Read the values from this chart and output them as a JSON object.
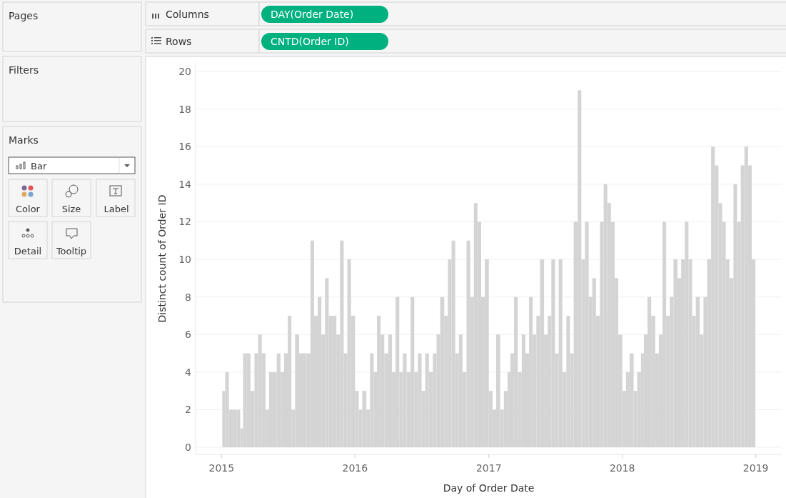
{
  "chart_data": {
    "type": "bar",
    "xlabel": "Day of Order Date",
    "ylabel": "Distinct count of Order ID",
    "x": [
      "2015-01-03",
      "2015-01-11",
      "2015-01-21",
      "2015-02-01",
      "2015-02-11",
      "2015-02-21",
      "2015-03-01",
      "2015-03-11",
      "2015-03-21",
      "2015-04-01",
      "2015-04-11",
      "2015-04-21",
      "2015-05-01",
      "2015-05-11",
      "2015-05-21",
      "2015-06-01",
      "2015-06-11",
      "2015-06-21",
      "2015-07-01",
      "2015-07-11",
      "2015-07-21",
      "2015-08-01",
      "2015-08-11",
      "2015-08-21",
      "2015-09-01",
      "2015-09-11",
      "2015-09-21",
      "2015-10-01",
      "2015-10-11",
      "2015-10-21",
      "2015-11-01",
      "2015-11-11",
      "2015-11-21",
      "2015-12-01",
      "2015-12-11",
      "2015-12-21",
      "2016-01-01",
      "2016-01-11",
      "2016-01-21",
      "2016-02-01",
      "2016-02-11",
      "2016-02-21",
      "2016-03-01",
      "2016-03-11",
      "2016-03-21",
      "2016-04-01",
      "2016-04-11",
      "2016-04-21",
      "2016-05-01",
      "2016-05-11",
      "2016-05-21",
      "2016-06-01",
      "2016-06-11",
      "2016-06-21",
      "2016-07-01",
      "2016-07-11",
      "2016-07-21",
      "2016-08-01",
      "2016-08-11",
      "2016-08-21",
      "2016-09-01",
      "2016-09-11",
      "2016-09-21",
      "2016-10-01",
      "2016-10-11",
      "2016-10-21",
      "2016-11-01",
      "2016-11-11",
      "2016-11-21",
      "2016-12-01",
      "2016-12-11",
      "2016-12-21",
      "2017-01-01",
      "2017-01-11",
      "2017-01-21",
      "2017-02-01",
      "2017-02-11",
      "2017-02-21",
      "2017-03-01",
      "2017-03-11",
      "2017-03-21",
      "2017-04-01",
      "2017-04-11",
      "2017-04-21",
      "2017-05-01",
      "2017-05-11",
      "2017-05-21",
      "2017-06-01",
      "2017-06-11",
      "2017-06-21",
      "2017-07-01",
      "2017-07-11",
      "2017-07-21",
      "2017-08-01",
      "2017-08-11",
      "2017-08-21",
      "2017-09-01",
      "2017-09-11",
      "2017-09-21",
      "2017-10-01",
      "2017-10-11",
      "2017-10-21",
      "2017-11-01",
      "2017-11-11",
      "2017-11-21",
      "2017-12-01",
      "2017-12-11",
      "2017-12-21",
      "2018-01-01",
      "2018-01-11",
      "2018-01-21",
      "2018-02-01",
      "2018-02-11",
      "2018-02-21",
      "2018-03-01",
      "2018-03-11",
      "2018-03-21",
      "2018-04-01",
      "2018-04-11",
      "2018-04-21",
      "2018-05-01",
      "2018-05-11",
      "2018-05-21",
      "2018-06-01",
      "2018-06-11",
      "2018-06-21",
      "2018-07-01",
      "2018-07-11",
      "2018-07-21",
      "2018-08-01",
      "2018-08-11",
      "2018-08-21",
      "2018-09-01",
      "2018-09-11",
      "2018-09-21",
      "2018-10-01",
      "2018-10-11",
      "2018-10-21",
      "2018-11-01",
      "2018-11-11",
      "2018-11-21",
      "2018-12-01",
      "2018-12-11",
      "2018-12-21"
    ],
    "values": [
      3,
      4,
      2,
      2,
      2,
      1,
      5,
      5,
      3,
      5,
      6,
      5,
      2,
      4,
      4,
      5,
      4,
      5,
      7,
      2,
      6,
      5,
      5,
      5,
      11,
      7,
      8,
      6,
      9,
      7,
      7,
      6,
      11,
      5,
      10,
      7,
      3,
      2,
      3,
      2,
      5,
      4,
      7,
      6,
      5,
      6,
      4,
      8,
      4,
      5,
      4,
      8,
      4,
      5,
      3,
      5,
      4,
      5,
      6,
      8,
      7,
      10,
      11,
      5,
      6,
      4,
      11,
      8,
      13,
      12,
      8,
      10,
      3,
      2,
      6,
      2,
      3,
      4,
      5,
      8,
      4,
      6,
      5,
      8,
      6,
      7,
      10,
      6,
      7,
      10,
      5,
      10,
      4,
      7,
      5,
      12,
      19,
      10,
      12,
      8,
      9,
      7,
      12,
      14,
      13,
      12,
      9,
      6,
      3,
      4,
      5,
      3,
      4,
      5,
      6,
      8,
      7,
      5,
      6,
      12,
      7,
      8,
      10,
      9,
      10,
      12,
      10,
      7,
      8,
      6,
      8,
      10,
      16,
      15,
      13,
      12,
      10,
      9,
      14,
      12,
      15,
      16,
      15,
      10
    ],
    "color": "#d4d4d4",
    "xlim": [
      "2014-10-22",
      "2019-03-13"
    ],
    "xticks": [
      "2015",
      "2016",
      "2017",
      "2018",
      "2019"
    ],
    "ylim": [
      0,
      20
    ],
    "yticks": [
      0,
      2,
      4,
      6,
      8,
      10,
      12,
      14,
      16,
      18,
      20
    ],
    "grid": "y",
    "annotations": [
      "Pages",
      "Columns",
      "DAY(Order Date)",
      "Rows",
      "CNTD(Order ID)",
      "Filters",
      "Marks",
      "Bar",
      "Color",
      "Size",
      "Label",
      "Detail",
      "Tooltip"
    ]
  }
}
